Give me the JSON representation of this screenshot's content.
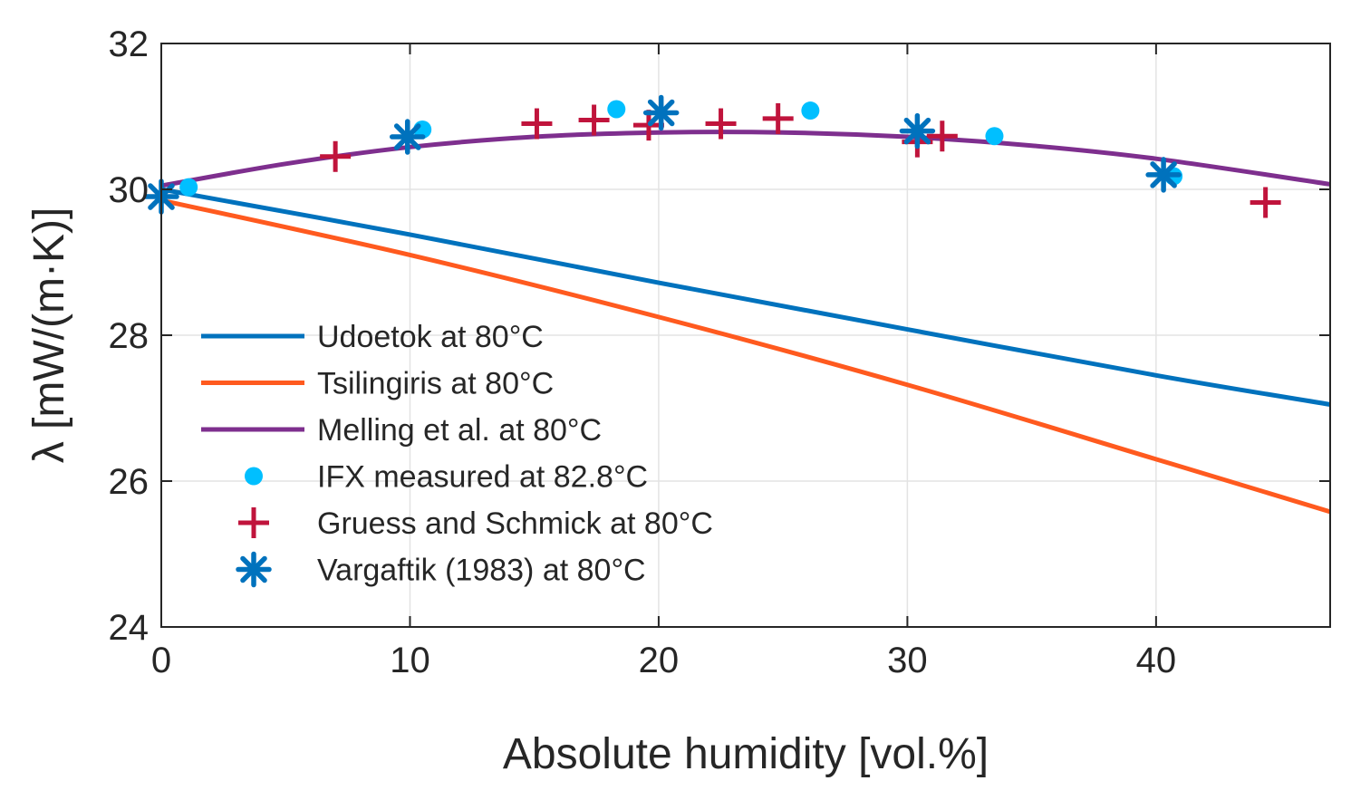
{
  "chart_data": {
    "type": "line",
    "title": "",
    "xlabel": "Absolute humidity [vol.%]",
    "ylabel": "λ [mW/(m·K)]",
    "xlim": [
      0,
      47
    ],
    "ylim": [
      24,
      32
    ],
    "xticks": [
      0,
      10,
      20,
      30,
      40
    ],
    "yticks": [
      24,
      26,
      28,
      30,
      32
    ],
    "grid": true,
    "legend_position": "center-left",
    "series": [
      {
        "name": "Udoetok at 80°C",
        "kind": "line",
        "color": "#0072BD",
        "x": [
          0,
          10,
          20,
          30,
          40,
          47
        ],
        "y": [
          30.0,
          29.38,
          28.72,
          28.08,
          27.45,
          27.05
        ]
      },
      {
        "name": "Tsilingiris at 80°C",
        "kind": "line",
        "color": "#FF5A1F",
        "x": [
          0,
          10,
          20,
          30,
          40,
          47
        ],
        "y": [
          29.85,
          29.1,
          28.25,
          27.32,
          26.3,
          25.58
        ]
      },
      {
        "name": "Melling et al. at 80°C",
        "kind": "line",
        "color": "#7E2F8E",
        "x": [
          0,
          5,
          10,
          15,
          20,
          25,
          30,
          35,
          40,
          47
        ],
        "y": [
          30.05,
          30.35,
          30.58,
          30.72,
          30.78,
          30.78,
          30.72,
          30.6,
          30.42,
          30.07
        ]
      },
      {
        "name": "IFX measured at 82.8°C",
        "kind": "scatter",
        "marker": "dot",
        "color": "#00BFFF",
        "x": [
          1.1,
          10.5,
          18.3,
          26.1,
          33.5,
          40.7
        ],
        "y": [
          30.03,
          30.82,
          31.1,
          31.08,
          30.73,
          30.18
        ]
      },
      {
        "name": "Gruess and Schmick at 80°C",
        "kind": "scatter",
        "marker": "plus",
        "color": "#C0143C",
        "x": [
          7.0,
          15.1,
          17.4,
          19.6,
          22.5,
          24.8,
          30.4,
          31.4,
          44.4
        ],
        "y": [
          30.45,
          30.9,
          30.95,
          30.88,
          30.9,
          30.97,
          30.65,
          30.73,
          29.82
        ]
      },
      {
        "name": "Vargaftik (1983) at 80°C",
        "kind": "scatter",
        "marker": "asterisk",
        "color": "#0072BD",
        "x": [
          0,
          9.9,
          20.1,
          30.4,
          40.3
        ],
        "y": [
          29.9,
          30.72,
          31.05,
          30.8,
          30.2
        ]
      }
    ]
  }
}
